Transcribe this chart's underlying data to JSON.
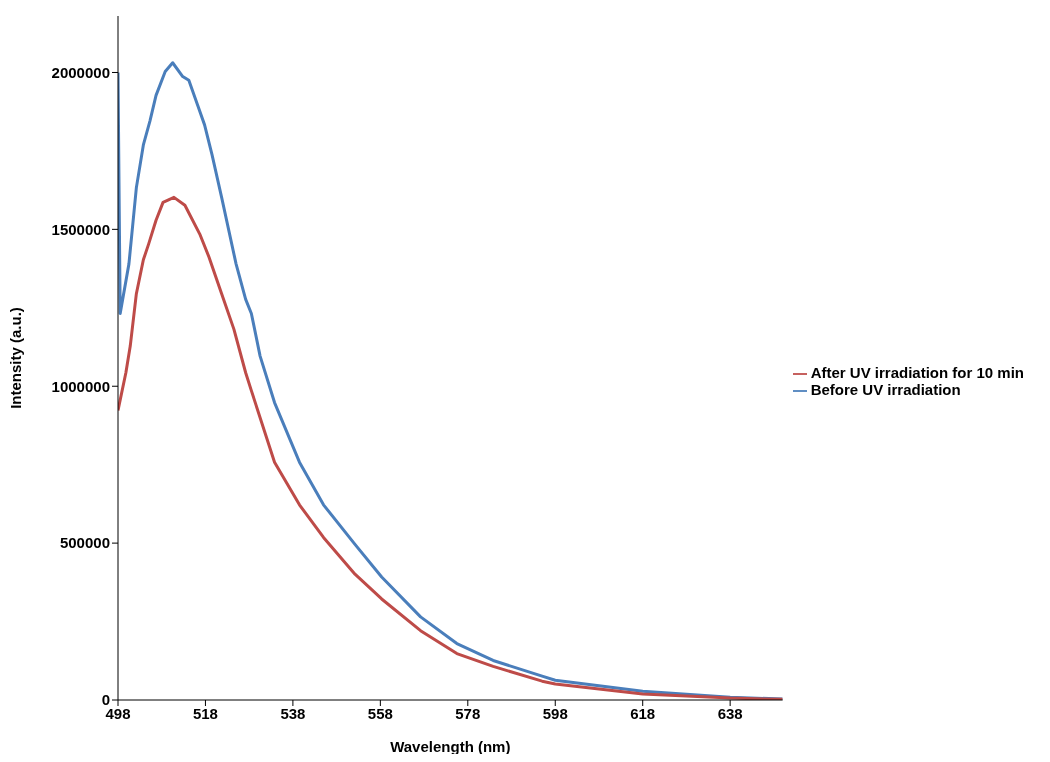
{
  "chart_data": {
    "type": "line",
    "xlabel": "Wavelength (nm)",
    "ylabel": "Intensity (a.u.)",
    "xlim": [
      498,
      650
    ],
    "xticks": [
      498,
      518,
      538,
      558,
      578,
      598,
      618,
      638
    ],
    "ylim": [
      0,
      2180000
    ],
    "yticks": [
      0,
      500000,
      1000000,
      1500000,
      2000000
    ],
    "grid": false,
    "legend": "right",
    "marker": "none",
    "line_style": "solid",
    "series": [
      {
        "name": "Before UV irradiation",
        "color": "#4a7ebb",
        "x": [
          498,
          498.5,
          500.5,
          502.2,
          503.8,
          505.3,
          506.7,
          508.8,
          510.5,
          512.8,
          514.2,
          516.2,
          517.8,
          519.5,
          521.7,
          525,
          527.2,
          528.5,
          530.5,
          533.8,
          539.5,
          545,
          552.2,
          558.3,
          567.2,
          575.5,
          583.8,
          595,
          598,
          618,
          638,
          650
        ],
        "values": [
          2000000,
          1232000,
          1390000,
          1633000,
          1769000,
          1845000,
          1927000,
          2003000,
          2031000,
          1987000,
          1975000,
          1896000,
          1833000,
          1738000,
          1602000,
          1390000,
          1277000,
          1232000,
          1096000,
          948000,
          758000,
          622000,
          496000,
          392000,
          265000,
          180000,
          126000,
          76000,
          63000,
          28000,
          9000,
          3000
        ]
      },
      {
        "name": "After UV irradiation for 10 min",
        "color": "#be4b48",
        "x": [
          498,
          499.8,
          500.8,
          502.2,
          503.8,
          505,
          506.7,
          508.3,
          510.8,
          513.3,
          516.7,
          518.8,
          521.7,
          524.5,
          527.2,
          528.5,
          533.8,
          539.5,
          545,
          552.2,
          558.3,
          567.2,
          575.5,
          583.8,
          595,
          598,
          618,
          638,
          650
        ],
        "values": [
          923000,
          1043000,
          1128000,
          1295000,
          1403000,
          1453000,
          1529000,
          1586000,
          1602000,
          1577000,
          1485000,
          1412000,
          1295000,
          1182000,
          1043000,
          986000,
          758000,
          622000,
          518000,
          401000,
          322000,
          221000,
          148000,
          107000,
          60000,
          51000,
          19000,
          6000,
          2000
        ]
      }
    ]
  }
}
